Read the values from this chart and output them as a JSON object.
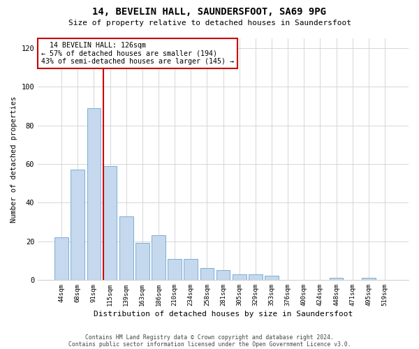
{
  "title": "14, BEVELIN HALL, SAUNDERSFOOT, SA69 9PG",
  "subtitle": "Size of property relative to detached houses in Saundersfoot",
  "xlabel": "Distribution of detached houses by size in Saundersfoot",
  "ylabel": "Number of detached properties",
  "footnote1": "Contains HM Land Registry data © Crown copyright and database right 2024.",
  "footnote2": "Contains public sector information licensed under the Open Government Licence v3.0.",
  "categories": [
    "44sqm",
    "68sqm",
    "91sqm",
    "115sqm",
    "139sqm",
    "163sqm",
    "186sqm",
    "210sqm",
    "234sqm",
    "258sqm",
    "281sqm",
    "305sqm",
    "329sqm",
    "353sqm",
    "376sqm",
    "400sqm",
    "424sqm",
    "448sqm",
    "471sqm",
    "495sqm",
    "519sqm"
  ],
  "values": [
    22,
    57,
    89,
    59,
    33,
    19,
    23,
    11,
    11,
    6,
    5,
    3,
    3,
    2,
    0,
    0,
    0,
    1,
    0,
    1,
    0
  ],
  "bar_color": "#c5d8ee",
  "bar_edge_color": "#7aafd4",
  "annotation_line1": "  14 BEVELIN HALL: 126sqm",
  "annotation_line2": "← 57% of detached houses are smaller (194)",
  "annotation_line3": "43% of semi-detached houses are larger (145) →",
  "vline_color": "#cc0000",
  "annotation_box_color": "#ffffff",
  "annotation_box_edge": "#cc0000",
  "ylim": [
    0,
    125
  ],
  "yticks": [
    0,
    20,
    40,
    60,
    80,
    100,
    120
  ],
  "background_color": "#ffffff",
  "grid_color": "#d0d0d0"
}
